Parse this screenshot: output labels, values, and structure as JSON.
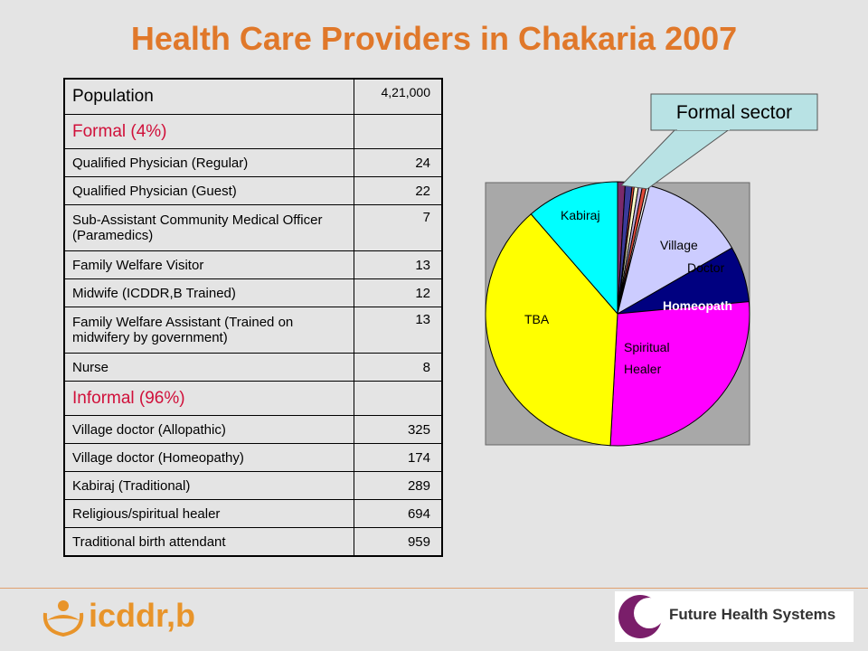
{
  "title": "Health Care Providers in Chakaria 2007",
  "table": {
    "population_label": "Population",
    "population_value": "4,21,000",
    "formal_label": "Formal (4%)",
    "formal_rows": [
      {
        "label": "Qualified Physician (Regular)",
        "value": "24"
      },
      {
        "label": "Qualified Physician (Guest)",
        "value": "22"
      },
      {
        "label": "Sub-Assistant Community Medical Officer (Paramedics)",
        "value": "7"
      },
      {
        "label": "Family Welfare Visitor",
        "value": "13"
      },
      {
        "label": "Midwife (ICDDR,B Trained)",
        "value": "12"
      },
      {
        "label": "Family Welfare Assistant (Trained on midwifery by government)",
        "value": "13"
      },
      {
        "label": "Nurse",
        "value": "8"
      }
    ],
    "informal_label": "Informal (96%)",
    "informal_rows": [
      {
        "label": "Village doctor (Allopathic)",
        "value": "325"
      },
      {
        "label": "Village doctor (Homeopathy)",
        "value": "174"
      },
      {
        "label": "Kabiraj (Traditional)",
        "value": "289"
      },
      {
        "label": "Religious/spiritual healer",
        "value": "694"
      },
      {
        "label": "Traditional birth attendant",
        "value": "959"
      }
    ]
  },
  "chart_data": {
    "type": "pie",
    "title": "",
    "slices": [
      {
        "label": "",
        "value": 24,
        "color": "#7a2a6a"
      },
      {
        "label": "",
        "value": 22,
        "color": "#3a3a9a"
      },
      {
        "label": "",
        "value": 7,
        "color": "#e04a3a"
      },
      {
        "label": "",
        "value": 13,
        "color": "#ffffcc"
      },
      {
        "label": "",
        "value": 12,
        "color": "#c0b0e0"
      },
      {
        "label": "",
        "value": 13,
        "color": "#e04a3a"
      },
      {
        "label": "",
        "value": 8,
        "color": "#ffffff"
      },
      {
        "label": "Village Doctor",
        "value": 325,
        "color": "#ccccff"
      },
      {
        "label": "Homeopath",
        "value": 174,
        "color": "#000080"
      },
      {
        "label": "Spiritual Healer",
        "value": 694,
        "color": "#ff00ff"
      },
      {
        "label": "TBA",
        "value": 959,
        "color": "#ffff00"
      },
      {
        "label": "Kabiraj",
        "value": 289,
        "color": "#00ffff"
      }
    ],
    "callout": "Formal sector"
  },
  "logos": {
    "left": "icddr,b",
    "right": "Future Health Systems"
  }
}
